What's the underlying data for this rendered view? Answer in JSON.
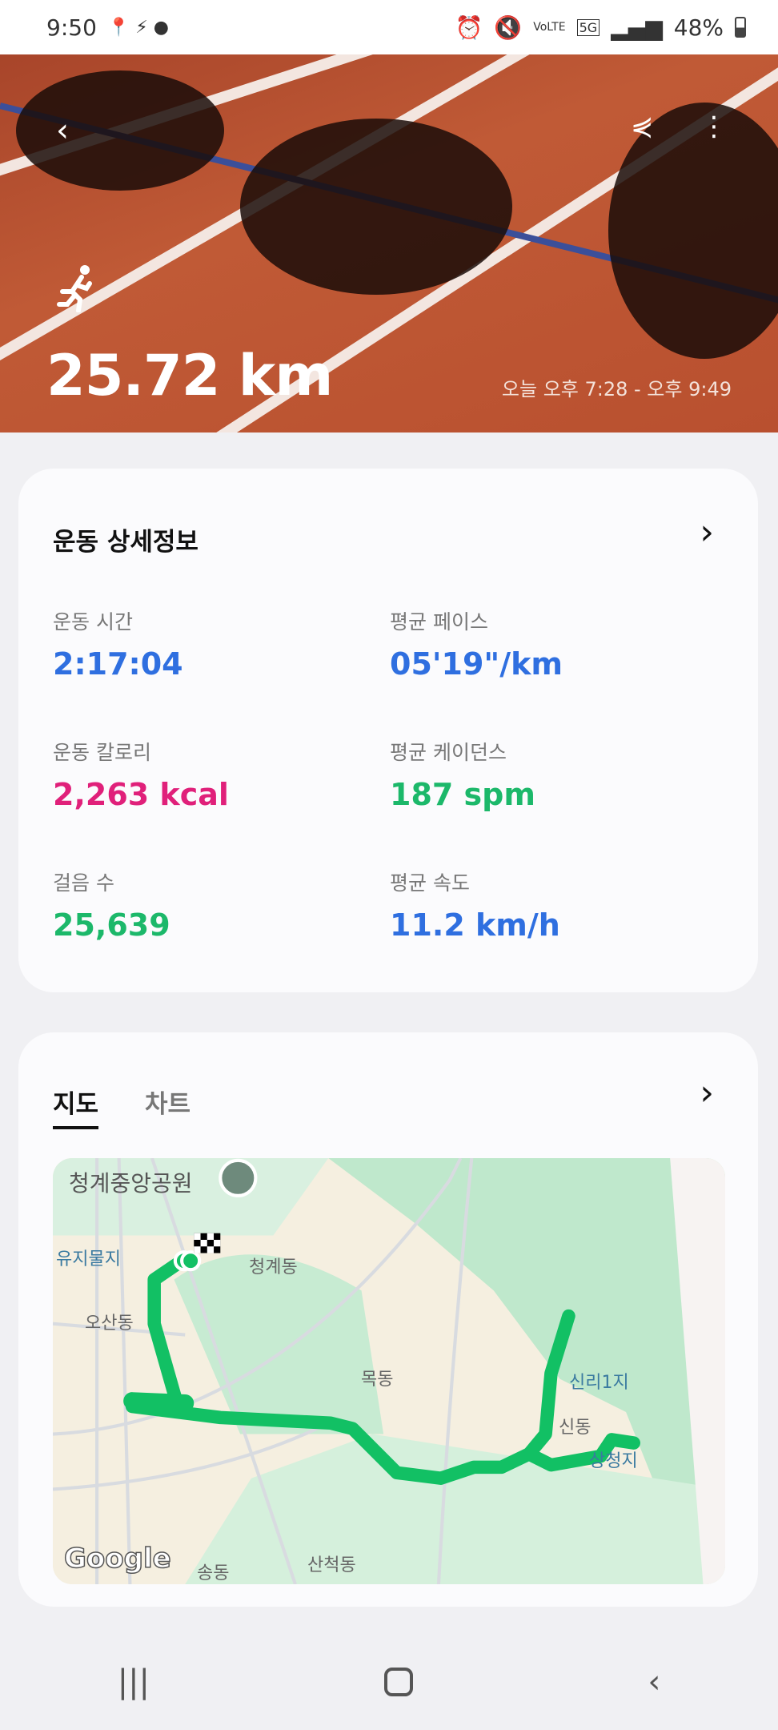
{
  "status_bar": {
    "time": "9:50",
    "battery": "48%",
    "network": "5G",
    "volte": "VoLTE"
  },
  "hero": {
    "distance": "25.72 km",
    "time_range": "오늘 오후 7:28 - 오후 9:49",
    "activity_icon": "running-icon"
  },
  "details": {
    "title": "운동 상세정보",
    "stats": [
      {
        "label": "운동 시간",
        "value": "2:17:04",
        "color": "#2f6fe0"
      },
      {
        "label": "평균 페이스",
        "value": "05'19\"/km",
        "color": "#2f6fe0"
      },
      {
        "label": "운동 칼로리",
        "value": "2,263 kcal",
        "color": "#e0207a"
      },
      {
        "label": "평균 케이던스",
        "value": "187 spm",
        "color": "#1cb86a"
      },
      {
        "label": "걸음 수",
        "value": "25,639",
        "color": "#1cb86a"
      },
      {
        "label": "평균 속도",
        "value": "11.2 km/h",
        "color": "#2f6fe0"
      }
    ]
  },
  "map_card": {
    "tabs": [
      {
        "label": "지도",
        "active": true
      },
      {
        "label": "차트",
        "active": false
      }
    ],
    "labels": {
      "park": "청계중앙공원",
      "l1": "유지물지",
      "l2": "청계동",
      "l3": "오산동",
      "l4": "목동",
      "l5": "신리1지",
      "l6": "신동",
      "l7": "상청지",
      "l8": "산척동",
      "l9": "송동"
    },
    "logo": "Google",
    "route_color": "#12c064"
  },
  "nav": {
    "recents": "recents-icon",
    "home": "home-icon",
    "back": "back-icon"
  }
}
